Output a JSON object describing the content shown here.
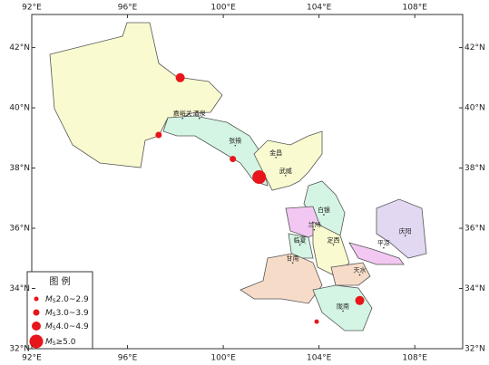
{
  "map": {
    "xlim": [
      92,
      110
    ],
    "ylim": [
      32,
      43.1
    ],
    "xticks": [
      {
        "value": 92,
        "label": "92°E"
      },
      {
        "value": 96,
        "label": "96°E"
      },
      {
        "value": 100,
        "label": "100°E"
      },
      {
        "value": 104,
        "label": "104°E"
      },
      {
        "value": 108,
        "label": "108°E"
      }
    ],
    "yticks": [
      {
        "value": 32,
        "label": "32°N"
      },
      {
        "value": 34,
        "label": "34°N"
      },
      {
        "value": 36,
        "label": "36°N"
      },
      {
        "value": 38,
        "label": "38°N"
      },
      {
        "value": 40,
        "label": "40°N"
      },
      {
        "value": 42,
        "label": "42°N"
      }
    ],
    "cities": [
      {
        "name": "嘉峪关",
        "lon": 98.3,
        "lat": 39.8
      },
      {
        "name": "酒泉",
        "lon": 99.0,
        "lat": 39.8
      },
      {
        "name": "张掖",
        "lon": 100.5,
        "lat": 38.9
      },
      {
        "name": "金昌",
        "lon": 102.2,
        "lat": 38.5
      },
      {
        "name": "武威",
        "lon": 102.6,
        "lat": 37.9
      },
      {
        "name": "白银",
        "lon": 104.2,
        "lat": 36.6
      },
      {
        "name": "兰州",
        "lon": 103.8,
        "lat": 36.1
      },
      {
        "name": "定西",
        "lon": 104.6,
        "lat": 35.6
      },
      {
        "name": "临夏",
        "lon": 103.2,
        "lat": 35.6
      },
      {
        "name": "平凉",
        "lon": 106.7,
        "lat": 35.5
      },
      {
        "name": "庆阳",
        "lon": 107.6,
        "lat": 35.9
      },
      {
        "name": "甘南",
        "lon": 102.9,
        "lat": 35.0
      },
      {
        "name": "天水",
        "lon": 105.7,
        "lat": 34.6
      },
      {
        "name": "陇南",
        "lon": 105.0,
        "lat": 33.4
      }
    ],
    "legend": {
      "title": "图  例",
      "symbol": "M",
      "subscript": "S",
      "entries": [
        {
          "range": "2.0~2.9",
          "events": [
            {
              "lon": 103.9,
              "lat": 32.9
            }
          ]
        },
        {
          "range": "3.0~3.9",
          "events": [
            {
              "lon": 97.3,
              "lat": 39.1
            },
            {
              "lon": 100.4,
              "lat": 38.3
            }
          ]
        },
        {
          "range": "4.0~4.9",
          "events": [
            {
              "lon": 98.2,
              "lat": 41.0
            },
            {
              "lon": 105.7,
              "lat": 33.6
            }
          ]
        },
        {
          "range": "≥5.0",
          "events": [
            {
              "lon": 101.5,
              "lat": 37.7
            }
          ]
        }
      ]
    }
  }
}
